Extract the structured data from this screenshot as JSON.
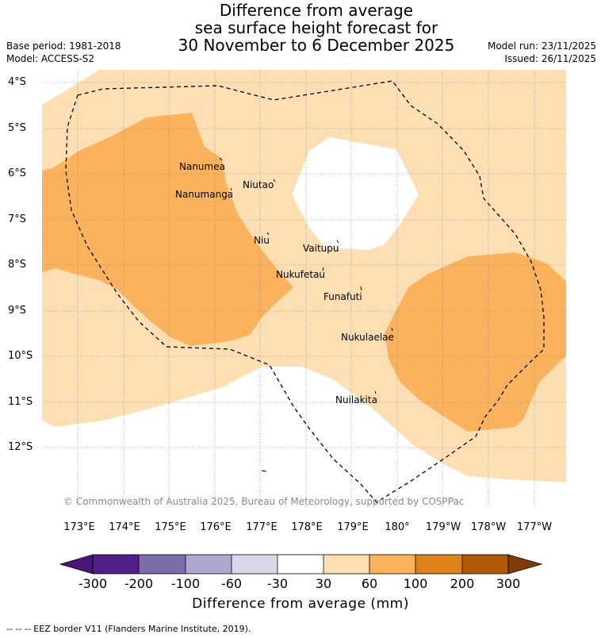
{
  "title": {
    "line1": "Difference from average",
    "line2": "sea surface height forecast for",
    "line3": "30 November to 6 December 2025"
  },
  "meta": {
    "base_period": "Base period: 1981-2018",
    "model": "Model: ACCESS-S2",
    "model_run": "Model run: 23/11/2025",
    "issued": "Issued: 26/11/2025"
  },
  "latitude_labels": [
    "4°S",
    "5°S",
    "6°S",
    "7°S",
    "8°S",
    "9°S",
    "10°S",
    "11°S",
    "12°S"
  ],
  "longitude_labels": [
    "173°E",
    "174°E",
    "175°E",
    "176°E",
    "177°E",
    "178°E",
    "179°E",
    "180°",
    "179°W",
    "178°W",
    "177°W"
  ],
  "islands": {
    "nanumea": "Nanumea",
    "nanumanga": "Nanumanga",
    "niutao": "Niutao",
    "niu": "Niu",
    "vaitupu": "Vaitupu",
    "nukufetau": "Nukufetau",
    "funafuti": "Funafuti",
    "nukulaelae": "Nukulaelae",
    "nuilakita": "Nuilakita"
  },
  "copyright": "© Commonwealth of Australia 2025, Bureau of Meteorology, supported by COSPPac",
  "colorbar": {
    "title": "Difference from average (mm)",
    "ticks": [
      "-300",
      "-200",
      "-100",
      "-60",
      "-30",
      "30",
      "60",
      "100",
      "200",
      "300"
    ],
    "colors": [
      "#4b1679",
      "#531f87",
      "#7b6eab",
      "#aea7cf",
      "#d9d8eb",
      "#ffffff",
      "#fddfb3",
      "#fab35c",
      "#e0801a",
      "#b35806",
      "#7f3b08"
    ]
  },
  "footnote": "--  --  -- EEZ border V11 (Flanders Marine Institute, 2019)."
}
